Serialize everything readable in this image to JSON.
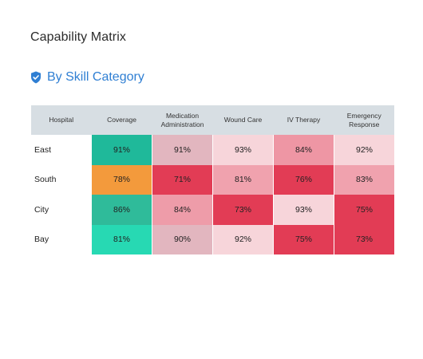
{
  "page": {
    "title": "Capability Matrix"
  },
  "section": {
    "title": "By Skill Category",
    "icon": "shield-check-icon",
    "accent": "#2f7fd3"
  },
  "chart_data": {
    "type": "heatmap",
    "title": "Capability Matrix",
    "subtitle": "By Skill Category",
    "corner_label": "Hospital",
    "columns": [
      "Coverage",
      "Medication Administration",
      "Wound Care",
      "IV Therapy",
      "Emergency Response"
    ],
    "rows": [
      {
        "name": "East",
        "values": [
          "91%",
          "91%",
          "93%",
          "84%",
          "92%"
        ],
        "colors": [
          "#1fb99a",
          "#e2b6bf",
          "#f7d5da",
          "#ee96a4",
          "#f7d5da"
        ]
      },
      {
        "name": "South",
        "values": [
          "78%",
          "71%",
          "81%",
          "76%",
          "83%"
        ],
        "colors": [
          "#f39a3c",
          "#e23c55",
          "#f0a2ae",
          "#e23c55",
          "#f0a2ae"
        ]
      },
      {
        "name": "City",
        "values": [
          "86%",
          "84%",
          "73%",
          "93%",
          "75%"
        ],
        "colors": [
          "#2fbb9a",
          "#ee9ca9",
          "#e23c55",
          "#f7d5da",
          "#e23c55"
        ]
      },
      {
        "name": "Bay",
        "values": [
          "81%",
          "90%",
          "92%",
          "75%",
          "73%"
        ],
        "colors": [
          "#27d9b3",
          "#e2b6bf",
          "#f7d5da",
          "#e23c55",
          "#e23c55"
        ]
      }
    ]
  }
}
